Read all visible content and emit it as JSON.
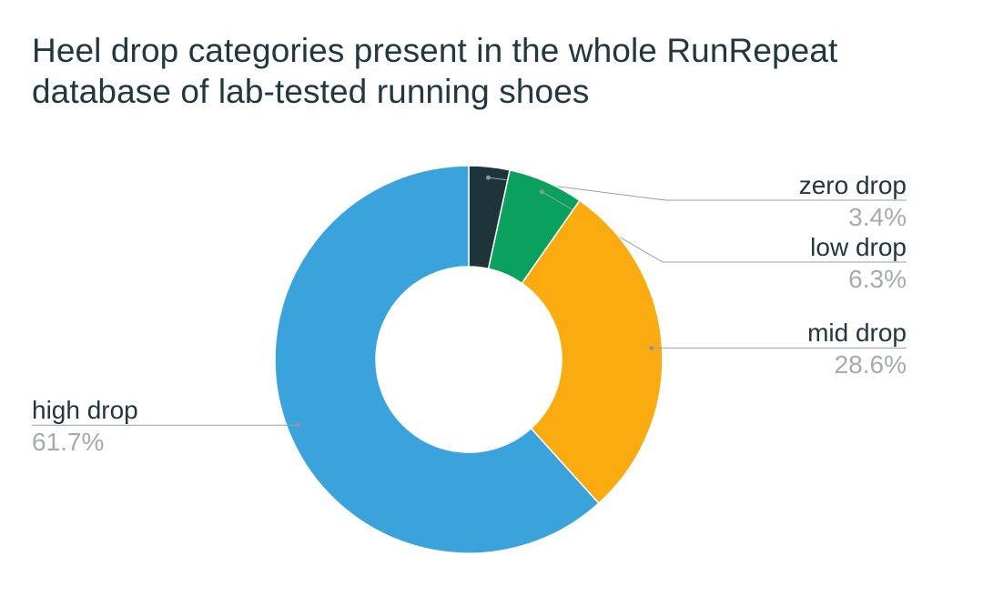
{
  "page": {
    "background": "#ffffff"
  },
  "chart_data": {
    "type": "pie",
    "subtype": "donut",
    "title": "Heel drop categories present in the whole RunRepeat\ndatabase of lab-tested running shoes",
    "direction": "clockwise",
    "start_angle_deg": 0,
    "inner_radius_ratio": 0.48,
    "legend_position": "callout-labels",
    "slices": [
      {
        "label": "zero drop",
        "value": 3.4,
        "display": "3.4%",
        "color": "#1e343b"
      },
      {
        "label": "low drop",
        "value": 6.3,
        "display": "6.3%",
        "color": "#0aa05e"
      },
      {
        "label": "mid drop",
        "value": 28.6,
        "display": "28.6%",
        "color": "#f9ab10"
      },
      {
        "label": "high drop",
        "value": 61.7,
        "display": "61.7%",
        "color": "#3aa3dc"
      }
    ],
    "colors": {
      "title_text": "#22373f",
      "label_text": "#22373f",
      "percent_text": "#a5abae",
      "leader_line": "#9aa0a4",
      "leader_dot": "#8f969a",
      "slice_separator": "#ffffff"
    }
  }
}
